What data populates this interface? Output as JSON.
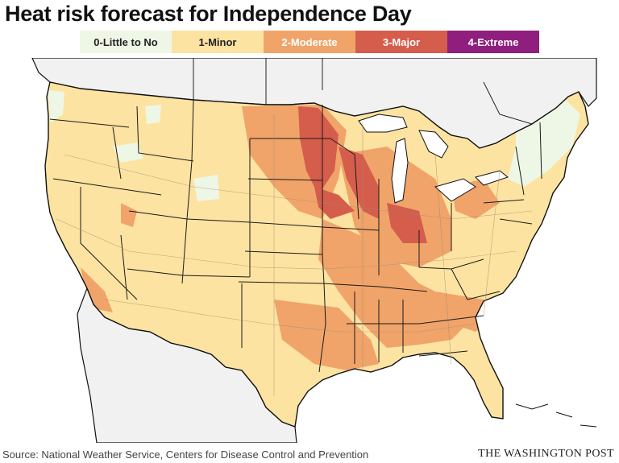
{
  "title": "Heat risk forecast for Independence Day",
  "legend": [
    {
      "label": "0-Little to No",
      "color": "#eef7e6",
      "text_color": "#222222"
    },
    {
      "label": "1-Minor",
      "color": "#fde3a1",
      "text_color": "#222222"
    },
    {
      "label": "2-Moderate",
      "color": "#f0a46a",
      "text_color": "#ffffff"
    },
    {
      "label": "3-Major",
      "color": "#d45d4c",
      "text_color": "#ffffff"
    },
    {
      "label": "4-Extreme",
      "color": "#8f1e7e",
      "text_color": "#ffffff"
    }
  ],
  "map": {
    "subject": "Contiguous United States",
    "background_color": "#f1f1f1",
    "water_color": "#ffffff"
  },
  "source": "Source: National Weather Service, Centers for Disease Control and Prevention",
  "credit": "THE WASHINGTON POST"
}
